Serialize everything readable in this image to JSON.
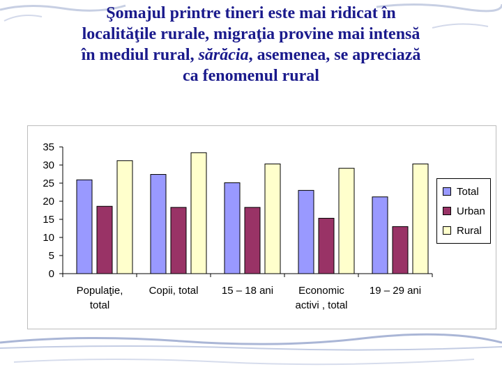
{
  "title": {
    "line1": "Şomajul printre tineri este mai ridicat în",
    "line2": "localităţile rurale, migraţia provine mai intensă",
    "line3_a": "în mediul rural,  ",
    "line3_em": "sărăcia",
    "line3_b": ", asemenea, se apreciază",
    "line4": "ca fenomenul rural"
  },
  "legend": {
    "total": "Total",
    "urban": "Urban",
    "rural": "Rural"
  },
  "colors": {
    "total": "#9999ff",
    "urban": "#993366",
    "rural": "#ffffcc",
    "title": "#1a1a8c"
  },
  "chart_data": {
    "type": "bar",
    "categories": [
      [
        "Populaţie,",
        "total"
      ],
      [
        "Copii, total"
      ],
      [
        "15 – 18 ani"
      ],
      [
        "Economic",
        "activi , total"
      ],
      [
        "19 – 29 ani"
      ]
    ],
    "series": [
      {
        "name": "Total",
        "values": [
          25.9,
          27.4,
          25.1,
          23.0,
          21.2
        ]
      },
      {
        "name": "Urban",
        "values": [
          18.6,
          18.3,
          18.3,
          15.3,
          13.0
        ]
      },
      {
        "name": "Rural",
        "values": [
          31.2,
          33.4,
          30.3,
          29.1,
          30.3
        ]
      }
    ],
    "yticks": [
      0,
      5,
      10,
      15,
      20,
      25,
      30,
      35
    ],
    "ylim": [
      0,
      35
    ],
    "grid": false,
    "legend_position": "right"
  }
}
